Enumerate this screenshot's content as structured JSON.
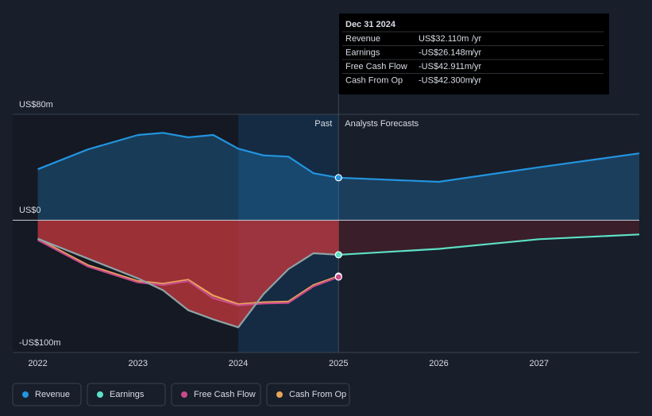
{
  "chart_data": {
    "type": "line",
    "x_label": null,
    "xlim": [
      2021.75,
      2028
    ],
    "xticks": [
      2022,
      2023,
      2024,
      2025,
      2026,
      2027
    ],
    "ylim": [
      -100,
      80
    ],
    "yticks": [
      {
        "value": 80,
        "label": "US$80m"
      },
      {
        "value": 0,
        "label": "US$0"
      },
      {
        "value": -100,
        "label": "-US$100m"
      }
    ],
    "forecast_start": 2025,
    "highlight": [
      2024,
      2025
    ],
    "past_label": "Past",
    "forecast_label": "Analysts Forecasts",
    "series": [
      {
        "name": "Revenue",
        "color": "#2394df",
        "x": [
          2022,
          2022.5,
          2023,
          2023.25,
          2023.5,
          2023.75,
          2024,
          2024.25,
          2024.5,
          2024.75,
          2025,
          2026,
          2027,
          2028
        ],
        "values": [
          38.5,
          53.5,
          64.4,
          66,
          62.6,
          64.4,
          54,
          49,
          48,
          35.5,
          32.11,
          29,
          40,
          50.5
        ]
      },
      {
        "name": "Earnings",
        "color": "#5ce0c6",
        "x": [
          2022,
          2022.5,
          2023,
          2023.25,
          2023.5,
          2023.75,
          2024,
          2024.25,
          2024.5,
          2024.75,
          2025,
          2026,
          2027,
          2028
        ],
        "values": [
          -14,
          -29,
          -44,
          -53,
          -68,
          -75,
          -81,
          -56,
          -37,
          -25,
          -26.148,
          -21.7,
          -14.4,
          -10.8
        ]
      },
      {
        "name": "Free Cash Flow",
        "color": "#c84b8a",
        "x": [
          2022,
          2022.5,
          2023,
          2023.25,
          2023.5,
          2023.75,
          2024,
          2024.25,
          2024.5,
          2024.75,
          2025
        ],
        "values": [
          -15,
          -35,
          -47,
          -49,
          -46,
          -59,
          -64.4,
          -63,
          -62.5,
          -50,
          -42.911
        ]
      },
      {
        "name": "Cash From Op",
        "color": "#e9a45a",
        "x": [
          2022,
          2022.5,
          2023,
          2023.25,
          2023.5,
          2023.75,
          2024,
          2024.25,
          2024.5,
          2024.75,
          2025
        ],
        "values": [
          -14,
          -34,
          -46,
          -48,
          -45,
          -57,
          -63.5,
          -62,
          -61.5,
          -49,
          -42.3
        ]
      }
    ],
    "tooltip": {
      "date": "Dec 31 2024",
      "rows": [
        {
          "label": "Revenue",
          "value": "US$32.110m",
          "unit": "/yr"
        },
        {
          "label": "Earnings",
          "value": "-US$26.148m",
          "unit": "/yr"
        },
        {
          "label": "Free Cash Flow",
          "value": "-US$42.911m",
          "unit": "/yr"
        },
        {
          "label": "Cash From Op",
          "value": "-US$42.300m",
          "unit": "/yr"
        }
      ]
    }
  }
}
